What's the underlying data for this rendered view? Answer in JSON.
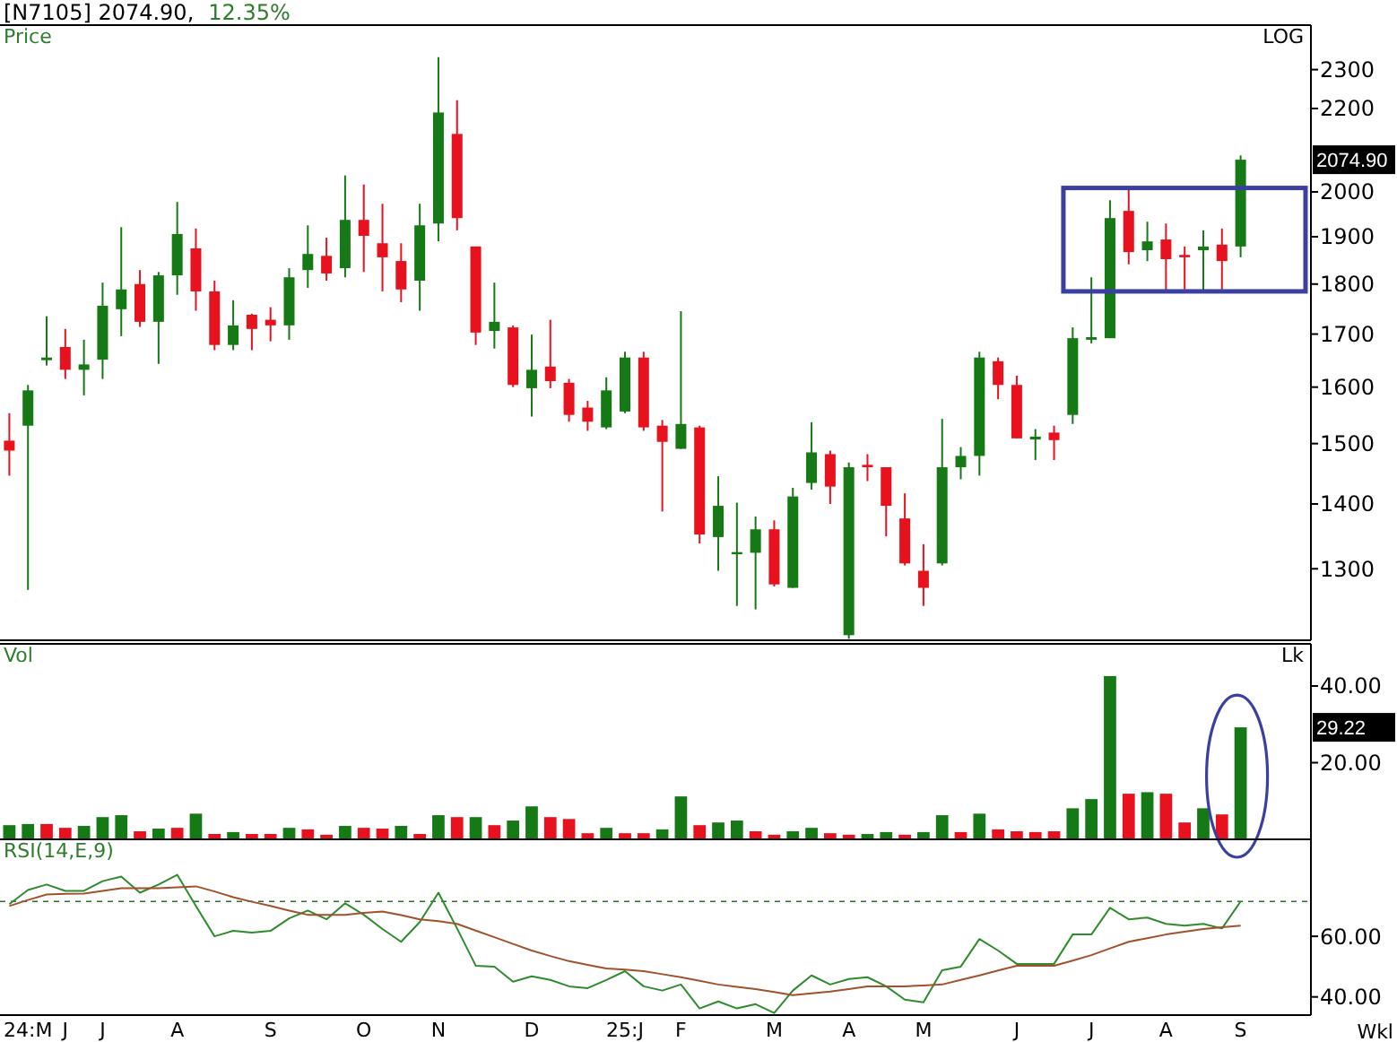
{
  "chart_data": [
    {
      "type": "candlestick",
      "title": "[N7105] 2074.90,",
      "subtitle": "12.35%",
      "ylabel": "Price",
      "log": true,
      "tick_labels": "y",
      "categories": [
        null,
        null,
        null,
        null,
        null,
        null,
        null,
        null,
        null,
        null,
        null,
        null,
        null,
        null,
        null,
        null,
        null,
        null,
        null,
        null,
        null,
        null,
        null,
        null,
        null,
        null,
        null,
        null,
        null,
        null,
        null,
        null,
        null,
        null,
        null,
        null,
        null,
        null,
        null,
        null,
        null,
        null,
        null,
        null,
        null,
        null,
        null,
        null,
        null,
        null,
        null,
        null,
        null,
        null,
        null,
        null,
        null,
        null,
        null,
        null,
        null,
        null,
        null,
        null,
        null,
        null,
        null
      ],
      "ohlc": [
        [
          1505,
          1553,
          1446,
          1488
        ],
        [
          1531,
          1604,
          1269,
          1594
        ],
        [
          1650,
          1735,
          1640,
          1655
        ],
        [
          1675,
          1710,
          1615,
          1632
        ],
        [
          1632,
          1689,
          1585,
          1642
        ],
        [
          1651,
          1803,
          1615,
          1756
        ],
        [
          1749,
          1921,
          1696,
          1789
        ],
        [
          1800,
          1829,
          1714,
          1724
        ],
        [
          1724,
          1825,
          1643,
          1818
        ],
        [
          1818,
          1977,
          1778,
          1906
        ],
        [
          1875,
          1918,
          1746,
          1785
        ],
        [
          1785,
          1807,
          1669,
          1679
        ],
        [
          1679,
          1767,
          1669,
          1717
        ],
        [
          1738,
          1740,
          1669,
          1710
        ],
        [
          1728,
          1753,
          1686,
          1717
        ],
        [
          1717,
          1833,
          1689,
          1814
        ],
        [
          1829,
          1925,
          1792,
          1863
        ],
        [
          1859,
          1898,
          1807,
          1822
        ],
        [
          1833,
          2038,
          1814,
          1937
        ],
        [
          1937,
          2017,
          1825,
          1902
        ],
        [
          1886,
          1973,
          1785,
          1856
        ],
        [
          1848,
          1886,
          1763,
          1789
        ],
        [
          1807,
          1973,
          1746,
          1925
        ],
        [
          1929,
          2333,
          1890,
          2190
        ],
        [
          2137,
          2221,
          1914,
          1941
        ],
        [
          1879,
          1879,
          1679,
          1703
        ],
        [
          1706,
          1803,
          1672,
          1724
        ],
        [
          1713,
          1717,
          1600,
          1604
        ],
        [
          1598,
          1699,
          1547,
          1632
        ],
        [
          1638,
          1728,
          1598,
          1611
        ],
        [
          1608,
          1615,
          1538,
          1550
        ],
        [
          1563,
          1575,
          1522,
          1538
        ],
        [
          1528,
          1618,
          1525,
          1594
        ],
        [
          1556,
          1666,
          1553,
          1655
        ],
        [
          1655,
          1666,
          1522,
          1528
        ],
        [
          1531,
          1541,
          1388,
          1503
        ],
        [
          1491,
          1745,
          1491,
          1534
        ],
        [
          1528,
          1531,
          1338,
          1352
        ],
        [
          1348,
          1445,
          1297,
          1397
        ],
        [
          1322,
          1402,
          1246,
          1325
        ],
        [
          1324,
          1380,
          1241,
          1360
        ],
        [
          1360,
          1374,
          1274,
          1277
        ],
        [
          1272,
          1426,
          1272,
          1412
        ],
        [
          1434,
          1537,
          1423,
          1485
        ],
        [
          1482,
          1488,
          1400,
          1428
        ],
        [
          1205,
          1468,
          1200,
          1460
        ],
        [
          1464,
          1482,
          1437,
          1460
        ],
        [
          1460,
          1460,
          1349,
          1397
        ],
        [
          1377,
          1417,
          1305,
          1308
        ],
        [
          1297,
          1337,
          1246,
          1272
        ],
        [
          1308,
          1543,
          1305,
          1460
        ],
        [
          1460,
          1494,
          1440,
          1479
        ],
        [
          1479,
          1666,
          1446,
          1655
        ],
        [
          1648,
          1655,
          1578,
          1604
        ],
        [
          1604,
          1621,
          1509,
          1509
        ],
        [
          1507,
          1525,
          1472,
          1512
        ],
        [
          1519,
          1531,
          1472,
          1506
        ],
        [
          1550,
          1713,
          1534,
          1692
        ],
        [
          1689,
          1814,
          1682,
          1694
        ],
        [
          1692,
          1981,
          1692,
          1941
        ],
        [
          1957,
          2009,
          1841,
          1867
        ],
        [
          1871,
          1933,
          1848,
          1890
        ],
        [
          1894,
          1929,
          1785,
          1852
        ],
        [
          1861,
          1879,
          1789,
          1856
        ],
        [
          1871,
          1914,
          1785,
          1879
        ],
        [
          1883,
          1918,
          1789,
          1848
        ],
        [
          1879,
          2085,
          1856,
          2074.9
        ]
      ],
      "colors": [
        "#e8121e",
        "#157a15",
        "#157a15",
        "#e8121e",
        "#157a15",
        "#157a15",
        "#157a15",
        "#e8121e",
        "#157a15",
        "#157a15",
        "#e8121e",
        "#e8121e",
        "#157a15",
        "#e8121e",
        "#e8121e",
        "#157a15",
        "#157a15",
        "#e8121e",
        "#157a15",
        "#e8121e",
        "#e8121e",
        "#e8121e",
        "#157a15",
        "#157a15",
        "#e8121e",
        "#e8121e",
        "#157a15",
        "#e8121e",
        "#157a15",
        "#e8121e",
        "#e8121e",
        "#e8121e",
        "#157a15",
        "#157a15",
        "#e8121e",
        "#e8121e",
        "#157a15",
        "#e8121e",
        "#157a15",
        "#157a15",
        "#157a15",
        "#e8121e",
        "#157a15",
        "#157a15",
        "#e8121e",
        "#157a15",
        "#e8121e",
        "#e8121e",
        "#e8121e",
        "#e8121e",
        "#157a15",
        "#157a15",
        "#157a15",
        "#e8121e",
        "#e8121e",
        "#157a15",
        "#e8121e",
        "#157a15",
        "#157a15",
        "#157a15",
        "#e8121e",
        "#157a15",
        "#e8121e",
        "#e8121e",
        "#157a15",
        "#e8121e",
        "#157a15"
      ],
      "ylim": [
        1198,
        2420
      ],
      "yticks": [
        1300,
        1400,
        1500,
        1600,
        1700,
        1800,
        1900,
        2000,
        2200,
        2300
      ],
      "annotations": [
        "LOG",
        "2074.90"
      ]
    },
    {
      "type": "bar",
      "ylabel": "Vol",
      "tick_labels": "y",
      "categories": [
        null,
        null,
        null,
        null,
        null,
        null,
        null,
        null,
        null,
        null,
        null,
        null,
        null,
        null,
        null,
        null,
        null,
        null,
        null,
        null,
        null,
        null,
        null,
        null,
        null,
        null,
        null,
        null,
        null,
        null,
        null,
        null,
        null,
        null,
        null,
        null,
        null,
        null,
        null,
        null,
        null,
        null,
        null,
        null,
        null,
        null,
        null,
        null,
        null,
        null,
        null,
        null,
        null,
        null,
        null,
        null,
        null,
        null,
        null,
        null,
        null,
        null,
        null,
        null,
        null,
        null,
        null
      ],
      "values": [
        3.7,
        4.0,
        4.0,
        3.0,
        3.5,
        5.8,
        6.3,
        2.1,
        2.8,
        3.0,
        6.7,
        1.4,
        1.9,
        1.4,
        1.4,
        3.0,
        2.6,
        1.2,
        3.5,
        3.0,
        2.8,
        3.5,
        1.4,
        6.3,
        5.8,
        5.8,
        3.7,
        4.9,
        8.6,
        5.8,
        5.3,
        1.6,
        3.0,
        1.6,
        1.6,
        2.6,
        11.2,
        3.7,
        4.4,
        4.9,
        2.1,
        1.2,
        2.1,
        3.0,
        1.6,
        1.2,
        1.4,
        1.9,
        1.2,
        1.9,
        6.3,
        1.9,
        6.7,
        2.6,
        2.1,
        1.9,
        2.1,
        8.1,
        10.5,
        42.6,
        11.9,
        12.3,
        11.9,
        4.4,
        8.1,
        6.5,
        29.22
      ],
      "colors": [
        "#157a15",
        "#157a15",
        "#e8121e",
        "#e8121e",
        "#157a15",
        "#157a15",
        "#157a15",
        "#e8121e",
        "#157a15",
        "#e8121e",
        "#157a15",
        "#e8121e",
        "#157a15",
        "#e8121e",
        "#e8121e",
        "#157a15",
        "#e8121e",
        "#e8121e",
        "#157a15",
        "#e8121e",
        "#e8121e",
        "#157a15",
        "#e8121e",
        "#157a15",
        "#e8121e",
        "#157a15",
        "#e8121e",
        "#157a15",
        "#157a15",
        "#e8121e",
        "#e8121e",
        "#e8121e",
        "#157a15",
        "#e8121e",
        "#e8121e",
        "#157a15",
        "#157a15",
        "#e8121e",
        "#157a15",
        "#157a15",
        "#e8121e",
        "#e8121e",
        "#157a15",
        "#157a15",
        "#e8121e",
        "#e8121e",
        "#157a15",
        "#157a15",
        "#e8121e",
        "#157a15",
        "#157a15",
        "#e8121e",
        "#157a15",
        "#e8121e",
        "#e8121e",
        "#e8121e",
        "#e8121e",
        "#157a15",
        "#157a15",
        "#157a15",
        "#e8121e",
        "#157a15",
        "#e8121e",
        "#e8121e",
        "#157a15",
        "#e8121e",
        "#157a15"
      ],
      "ylim": [
        0,
        51
      ],
      "yticks": [
        {
          "value": 20,
          "label": "20.00"
        },
        {
          "value": 40,
          "label": "40.00"
        }
      ],
      "annotations": [
        "Lk",
        "29.22"
      ]
    },
    {
      "type": "line",
      "ylabel": "RSI(14,E,9)",
      "xlabel": "Wkl",
      "categories": [
        null,
        "24:M",
        null,
        "J",
        null,
        "J",
        null,
        null,
        null,
        "A",
        null,
        null,
        null,
        null,
        "S",
        null,
        null,
        null,
        null,
        "O",
        null,
        null,
        null,
        "N",
        null,
        null,
        null,
        null,
        "D",
        null,
        null,
        null,
        null,
        "25:J",
        null,
        null,
        "F",
        null,
        null,
        null,
        null,
        "M",
        null,
        null,
        null,
        "A",
        null,
        null,
        null,
        "M",
        null,
        null,
        null,
        null,
        "J",
        null,
        null,
        null,
        "J",
        null,
        null,
        null,
        "A",
        null,
        null,
        null,
        "S"
      ],
      "series": [
        {
          "color": "#2e8b2e",
          "values": [
            70.6,
            75.3,
            77.1,
            75.0,
            75.0,
            78.2,
            79.7,
            74.4,
            77.1,
            80.3,
            70.0,
            60.0,
            61.8,
            61.2,
            61.8,
            65.9,
            68.5,
            65.6,
            70.9,
            67.1,
            62.4,
            58.2,
            64.7,
            74.4,
            62.6,
            50.3,
            50.0,
            45.0,
            46.8,
            45.6,
            43.5,
            42.9,
            45.6,
            48.5,
            43.5,
            42.1,
            44.1,
            36.2,
            38.5,
            36.2,
            37.6,
            34.7,
            42.1,
            47.1,
            44.1,
            45.9,
            46.5,
            43.5,
            39.1,
            38.2,
            48.8,
            50.0,
            59.1,
            55.3,
            50.9,
            50.9,
            50.9,
            60.6,
            60.6,
            69.4,
            65.6,
            66.2,
            64.1,
            63.5,
            64.1,
            62.6,
            71.5
          ]
        },
        {
          "color": "#a0522d",
          "values": [
            70.0,
            72.0,
            73.8,
            74.0,
            74.1,
            75.0,
            75.9,
            75.9,
            75.9,
            76.2,
            76.5,
            74.8,
            72.9,
            71.4,
            70.0,
            68.5,
            67.1,
            67.1,
            67.1,
            67.7,
            68.2,
            67.0,
            65.6,
            65.0,
            64.1,
            61.9,
            59.7,
            57.5,
            55.3,
            53.5,
            51.8,
            50.6,
            49.4,
            49.0,
            48.5,
            47.5,
            46.5,
            45.3,
            44.1,
            43.3,
            42.6,
            41.6,
            40.6,
            41.2,
            41.8,
            42.6,
            43.5,
            43.5,
            43.5,
            43.8,
            44.1,
            45.6,
            47.1,
            48.7,
            50.3,
            50.3,
            50.3,
            52.0,
            53.8,
            56.0,
            58.2,
            59.4,
            60.6,
            61.5,
            62.4,
            63.0,
            63.5
          ]
        }
      ],
      "ylim": [
        34,
        92
      ],
      "yticks": [
        {
          "value": 40,
          "label": "40.00"
        },
        {
          "value": 60,
          "label": "60.00"
        }
      ],
      "ref_lines": [
        {
          "axis": "y",
          "value": 71.5,
          "line_style": "dashed",
          "color": "#2e6b2e"
        }
      ]
    }
  ]
}
